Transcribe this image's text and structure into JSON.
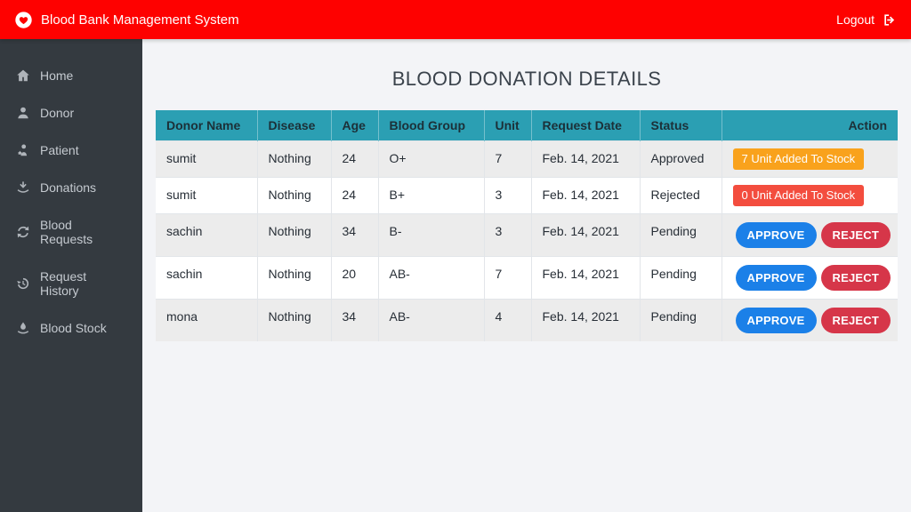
{
  "header": {
    "title": "Blood Bank Management System",
    "logo_icon": "heart-in-circle-icon",
    "logout_label": "Logout",
    "logout_icon": "sign-out-icon"
  },
  "sidebar": {
    "items": [
      {
        "label": "Home",
        "icon": "home-icon"
      },
      {
        "label": "Donor",
        "icon": "user-icon"
      },
      {
        "label": "Patient",
        "icon": "patient-icon"
      },
      {
        "label": "Donations",
        "icon": "donation-hand-icon"
      },
      {
        "label": "Blood Requests",
        "icon": "sync-icon"
      },
      {
        "label": "Request History",
        "icon": "history-icon"
      },
      {
        "label": "Blood Stock",
        "icon": "blood-drop-hand-icon"
      }
    ]
  },
  "main": {
    "title": "BLOOD DONATION DETAILS",
    "table": {
      "columns": [
        "Donor Name",
        "Disease",
        "Age",
        "Blood Group",
        "Unit",
        "Request Date",
        "Status",
        "Action"
      ],
      "rows": [
        {
          "donor_name": "sumit",
          "disease": "Nothing",
          "age": "24",
          "blood_group": "O+",
          "unit": "7",
          "request_date": "Feb. 14, 2021",
          "status": "Approved",
          "action": {
            "type": "badge",
            "variant": "warning",
            "label": "7 Unit Added To Stock"
          }
        },
        {
          "donor_name": "sumit",
          "disease": "Nothing",
          "age": "24",
          "blood_group": "B+",
          "unit": "3",
          "request_date": "Feb. 14, 2021",
          "status": "Rejected",
          "action": {
            "type": "badge",
            "variant": "danger",
            "label": "0 Unit Added To Stock"
          }
        },
        {
          "donor_name": "sachin",
          "disease": "Nothing",
          "age": "34",
          "blood_group": "B-",
          "unit": "3",
          "request_date": "Feb. 14, 2021",
          "status": "Pending",
          "action": {
            "type": "buttons",
            "approve_label": "APPROVE",
            "reject_label": "REJECT"
          }
        },
        {
          "donor_name": "sachin",
          "disease": "Nothing",
          "age": "20",
          "blood_group": "AB-",
          "unit": "7",
          "request_date": "Feb. 14, 2021",
          "status": "Pending",
          "action": {
            "type": "buttons",
            "approve_label": "APPROVE",
            "reject_label": "REJECT"
          }
        },
        {
          "donor_name": "mona",
          "disease": "Nothing",
          "age": "34",
          "blood_group": "AB-",
          "unit": "4",
          "request_date": "Feb. 14, 2021",
          "status": "Pending",
          "action": {
            "type": "buttons",
            "approve_label": "APPROVE",
            "reject_label": "REJECT"
          }
        }
      ]
    }
  },
  "colors": {
    "topbar": "#fe0100",
    "sidebar": "#343a40",
    "table_header": "#2b9fb3",
    "badge_orange": "#f9a21c",
    "badge_red": "#f34d3e",
    "approve_blue": "#1b80e8",
    "reject_red": "#d63649",
    "page_bg": "#f3f4f7"
  }
}
